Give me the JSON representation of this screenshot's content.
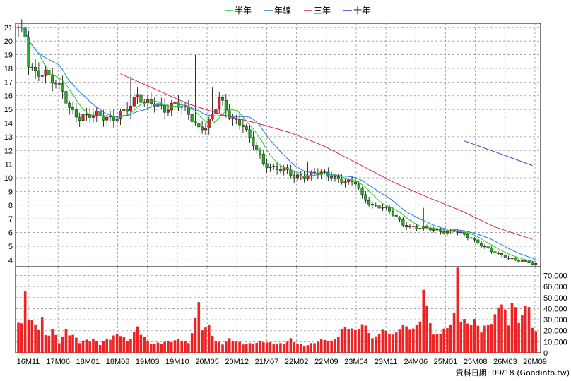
{
  "chart_data": {
    "type": "candlestick",
    "legend": [
      {
        "name": "半年",
        "color": "#22cc22"
      },
      {
        "name": "年線",
        "color": "#2277ee"
      },
      {
        "name": "三年",
        "color": "#dd2255"
      },
      {
        "name": "十年",
        "color": "#6622bb"
      }
    ],
    "legend_position": "top-center",
    "grid": true,
    "up_color": "#dd2222",
    "down_color": "#22aa22",
    "x_tick_labels": [
      "16M11",
      "17M06",
      "18M01",
      "18M08",
      "19M03",
      "19M10",
      "20M05",
      "20M12",
      "21M07",
      "22M02",
      "22M09",
      "23M04",
      "23M11",
      "24M06",
      "25M01",
      "25M08",
      "26M03",
      "26M09"
    ],
    "price_axis": {
      "ticks": [
        4,
        5,
        6,
        7,
        8,
        9,
        10,
        11,
        12,
        13,
        14,
        15,
        16,
        17,
        18,
        19,
        20,
        21
      ],
      "ylim": [
        3.5,
        21.3
      ]
    },
    "volume_axis": {
      "ticks": [
        0,
        10000,
        20000,
        30000,
        40000,
        50000,
        60000,
        70000
      ],
      "tick_labels": [
        "0",
        "10,000",
        "20,000",
        "30,000",
        "40,000",
        "50,000",
        "60,000",
        "70,000"
      ],
      "ylim": [
        0,
        78000
      ]
    },
    "price_keypoints": [
      [
        0,
        20.8
      ],
      [
        2,
        20.3
      ],
      [
        3,
        18.4
      ],
      [
        5,
        17.8
      ],
      [
        8,
        17.6
      ],
      [
        10,
        17.0
      ],
      [
        13,
        16.4
      ],
      [
        15,
        15.2
      ],
      [
        18,
        14.3
      ],
      [
        20,
        14.4
      ],
      [
        23,
        14.7
      ],
      [
        26,
        14.5
      ],
      [
        28,
        14.2
      ],
      [
        32,
        15.0
      ],
      [
        35,
        16.2
      ],
      [
        37,
        15.5
      ],
      [
        40,
        15.3
      ],
      [
        43,
        15.0
      ],
      [
        46,
        15.6
      ],
      [
        48,
        15.2
      ],
      [
        51,
        14.2
      ],
      [
        53,
        13.6
      ],
      [
        55,
        13.9
      ],
      [
        57,
        14.6
      ],
      [
        59,
        15.8
      ],
      [
        61,
        14.8
      ],
      [
        63,
        14.3
      ],
      [
        66,
        14.0
      ],
      [
        68,
        12.8
      ],
      [
        70,
        12.0
      ],
      [
        72,
        11.0
      ],
      [
        75,
        10.8
      ],
      [
        78,
        10.6
      ],
      [
        81,
        10.0
      ],
      [
        84,
        10.2
      ],
      [
        87,
        10.4
      ],
      [
        90,
        10.2
      ],
      [
        93,
        10.0
      ],
      [
        96,
        9.8
      ],
      [
        99,
        9.6
      ],
      [
        101,
        8.6
      ],
      [
        104,
        8.0
      ],
      [
        107,
        7.9
      ],
      [
        110,
        7.3
      ],
      [
        113,
        6.6
      ],
      [
        116,
        6.4
      ],
      [
        119,
        6.3
      ],
      [
        122,
        6.2
      ],
      [
        125,
        6.1
      ],
      [
        128,
        6.1
      ],
      [
        130,
        5.9
      ],
      [
        133,
        5.6
      ],
      [
        136,
        5.1
      ],
      [
        139,
        4.6
      ],
      [
        142,
        4.3
      ],
      [
        145,
        4.1
      ],
      [
        148,
        3.9
      ],
      [
        151,
        3.7
      ]
    ],
    "spikes": [
      {
        "i": 33,
        "high": 17.4
      },
      {
        "i": 52,
        "high": 19.0
      },
      {
        "i": 57,
        "high": 16.6
      },
      {
        "i": 85,
        "high": 11.2
      },
      {
        "i": 119,
        "high": 7.8
      },
      {
        "i": 128,
        "high": 7.0
      }
    ],
    "volume_keypoints": [
      [
        0,
        32000
      ],
      [
        1,
        25000
      ],
      [
        2,
        52000
      ],
      [
        3,
        35000
      ],
      [
        4,
        28000
      ],
      [
        5,
        24000
      ],
      [
        6,
        24000
      ],
      [
        7,
        30000
      ],
      [
        8,
        15000
      ],
      [
        9,
        18000
      ],
      [
        10,
        20000
      ],
      [
        11,
        15000
      ],
      [
        12,
        10000
      ],
      [
        13,
        14000
      ],
      [
        14,
        20000
      ],
      [
        15,
        18000
      ],
      [
        18,
        10000
      ],
      [
        22,
        12000
      ],
      [
        24,
        8000
      ],
      [
        28,
        15000
      ],
      [
        30,
        17000
      ],
      [
        32,
        10000
      ],
      [
        35,
        22000
      ],
      [
        38,
        10000
      ],
      [
        40,
        8000
      ],
      [
        44,
        10000
      ],
      [
        48,
        12000
      ],
      [
        50,
        8000
      ],
      [
        53,
        42000
      ],
      [
        54,
        22000
      ],
      [
        56,
        23000
      ],
      [
        58,
        10000
      ],
      [
        60,
        8000
      ],
      [
        62,
        12000
      ],
      [
        64,
        10000
      ],
      [
        66,
        8000
      ],
      [
        68,
        8000
      ],
      [
        72,
        10000
      ],
      [
        75,
        8000
      ],
      [
        78,
        8000
      ],
      [
        80,
        12000
      ],
      [
        82,
        8000
      ],
      [
        84,
        6000
      ],
      [
        86,
        8000
      ],
      [
        88,
        10000
      ],
      [
        90,
        12000
      ],
      [
        92,
        10000
      ],
      [
        94,
        15000
      ],
      [
        96,
        24000
      ],
      [
        98,
        20000
      ],
      [
        100,
        22000
      ],
      [
        102,
        25000
      ],
      [
        104,
        12000
      ],
      [
        106,
        18000
      ],
      [
        108,
        20000
      ],
      [
        110,
        15000
      ],
      [
        112,
        22000
      ],
      [
        114,
        24000
      ],
      [
        116,
        20000
      ],
      [
        118,
        30000
      ],
      [
        119,
        52000
      ],
      [
        120,
        42000
      ],
      [
        122,
        15000
      ],
      [
        124,
        18000
      ],
      [
        126,
        22000
      ],
      [
        128,
        33000
      ],
      [
        129,
        76000
      ],
      [
        130,
        30000
      ],
      [
        132,
        26000
      ],
      [
        134,
        28000
      ],
      [
        136,
        20000
      ],
      [
        138,
        25000
      ],
      [
        140,
        32000
      ],
      [
        142,
        48000
      ],
      [
        144,
        24000
      ],
      [
        145,
        50000
      ],
      [
        147,
        26000
      ],
      [
        148,
        38000
      ],
      [
        150,
        40000
      ],
      [
        151,
        25000
      ],
      [
        152,
        18000
      ]
    ],
    "volume_color": "#ee2222",
    "n_bars": 153,
    "ma_half_lag": 6,
    "ma_year_lag": 12,
    "ma_three": [
      [
        30,
        17.6
      ],
      [
        50,
        15.4
      ],
      [
        60,
        14.6
      ],
      [
        70,
        14.0
      ],
      [
        80,
        13.3
      ],
      [
        90,
        12.3
      ],
      [
        100,
        11.0
      ],
      [
        110,
        9.7
      ],
      [
        120,
        8.6
      ],
      [
        130,
        7.6
      ],
      [
        140,
        6.4
      ],
      [
        151,
        5.5
      ]
    ],
    "ma_ten": [
      [
        131,
        12.7
      ],
      [
        140,
        11.9
      ],
      [
        151,
        10.9
      ]
    ],
    "credit_text": "資料日期: 09/18 (Goodinfo.tw)"
  }
}
